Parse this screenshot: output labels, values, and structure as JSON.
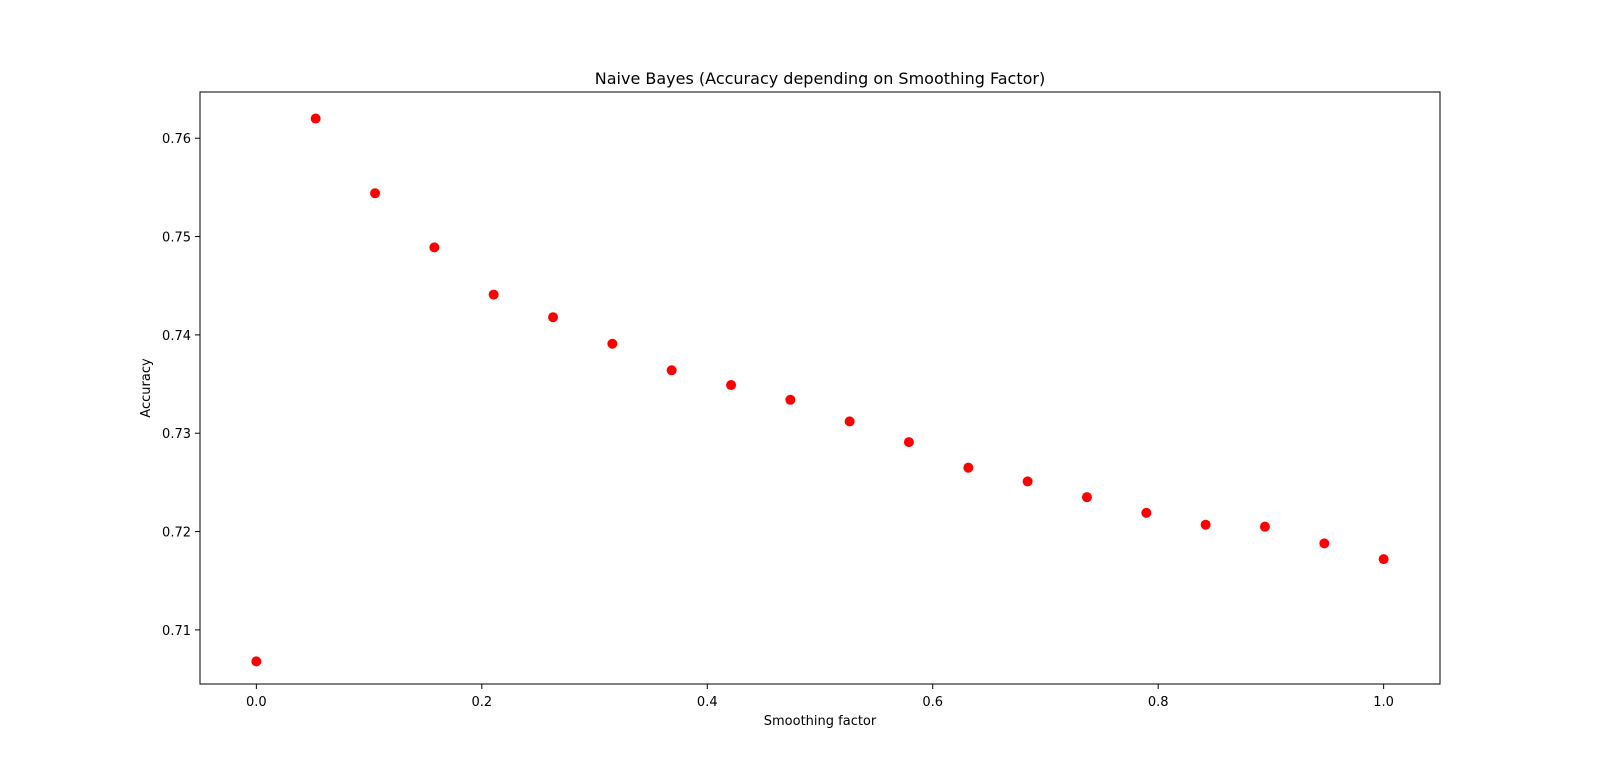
{
  "chart_data": {
    "type": "scatter",
    "title": "Naive Bayes (Accuracy depending on Smoothing Factor)",
    "xlabel": "Smoothing factor",
    "ylabel": "Accuracy",
    "xlim": [
      -0.05,
      1.05
    ],
    "ylim": [
      0.7045,
      0.7647
    ],
    "xticks": [
      0.0,
      0.2,
      0.4,
      0.6,
      0.8,
      1.0
    ],
    "xtick_labels": [
      "0.0",
      "0.2",
      "0.4",
      "0.6",
      "0.8",
      "1.0"
    ],
    "yticks": [
      0.71,
      0.72,
      0.73,
      0.74,
      0.75,
      0.76
    ],
    "ytick_labels": [
      "0.71",
      "0.72",
      "0.73",
      "0.74",
      "0.75",
      "0.76"
    ],
    "grid": false,
    "marker_color": "#ff0000",
    "x": [
      0.0,
      0.0526,
      0.1053,
      0.1579,
      0.2105,
      0.2632,
      0.3158,
      0.3684,
      0.4211,
      0.4737,
      0.5263,
      0.5789,
      0.6316,
      0.6842,
      0.7368,
      0.7895,
      0.8421,
      0.8947,
      0.9474,
      1.0
    ],
    "y": [
      0.7068,
      0.762,
      0.7544,
      0.7489,
      0.7441,
      0.7418,
      0.7391,
      0.7364,
      0.7349,
      0.7334,
      0.7312,
      0.7291,
      0.7265,
      0.7251,
      0.7235,
      0.7219,
      0.7207,
      0.7205,
      0.7188,
      0.7172
    ]
  }
}
